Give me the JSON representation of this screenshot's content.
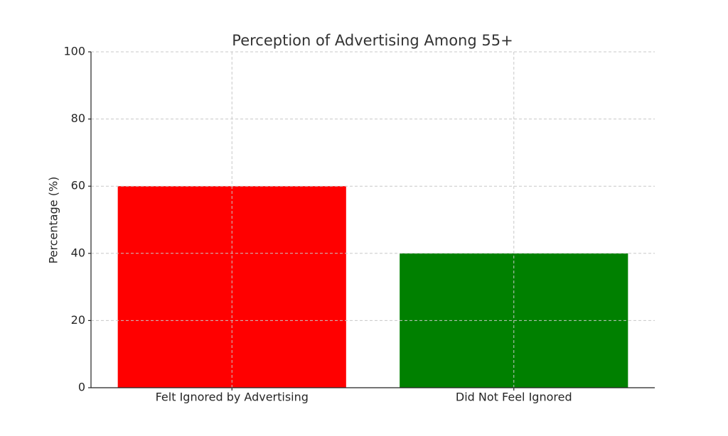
{
  "chart_data": {
    "type": "bar",
    "title": "Perception of Advertising Among 55+",
    "y_label": "Percentage (%)",
    "categories": [
      "Felt Ignored by Advertising",
      "Did Not Feel Ignored"
    ],
    "values": [
      60,
      40
    ],
    "colors": [
      "#ff0000",
      "#008000"
    ],
    "ylim": [
      0,
      100
    ],
    "yticks": [
      0,
      20,
      40,
      60,
      80,
      100
    ],
    "grid": true
  }
}
